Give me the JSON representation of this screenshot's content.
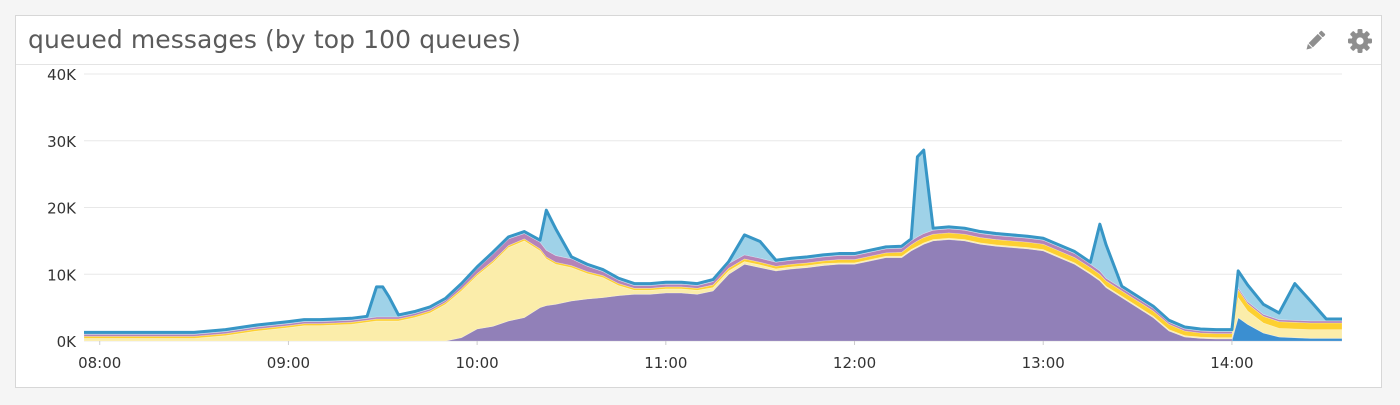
{
  "widget": {
    "title": "queued messages (by top 100 queues)",
    "edit_icon": "pencil-icon",
    "settings_icon": "gear-icon"
  },
  "chart_data": {
    "type": "area",
    "stacked": true,
    "title": "queued messages (by top 100 queues)",
    "xlabel": "",
    "ylabel": "",
    "x_ticks": [
      "08:00",
      "09:00",
      "10:00",
      "11:00",
      "12:00",
      "13:00",
      "14:00"
    ],
    "y_ticks": [
      "0K",
      "10K",
      "20K",
      "30K",
      "40K"
    ],
    "ylim": [
      0,
      40000
    ],
    "xlim": [
      "07:55",
      "14:35"
    ],
    "grid": true,
    "legend": "none",
    "x": [
      "07:55",
      "08:05",
      "08:20",
      "08:30",
      "08:40",
      "08:50",
      "09:00",
      "09:05",
      "09:10",
      "09:15",
      "09:20",
      "09:25",
      "09:28",
      "09:30",
      "09:32",
      "09:35",
      "09:40",
      "09:45",
      "09:50",
      "09:55",
      "10:00",
      "10:05",
      "10:10",
      "10:15",
      "10:20",
      "10:22",
      "10:25",
      "10:30",
      "10:35",
      "10:40",
      "10:45",
      "10:50",
      "10:55",
      "11:00",
      "11:05",
      "11:10",
      "11:15",
      "11:20",
      "11:25",
      "11:30",
      "11:35",
      "11:40",
      "11:45",
      "11:50",
      "11:55",
      "12:00",
      "12:05",
      "12:10",
      "12:15",
      "12:18",
      "12:20",
      "12:22",
      "12:25",
      "12:30",
      "12:35",
      "12:40",
      "12:45",
      "12:50",
      "12:55",
      "13:00",
      "13:05",
      "13:10",
      "13:15",
      "13:18",
      "13:20",
      "13:25",
      "13:30",
      "13:35",
      "13:40",
      "13:45",
      "13:50",
      "13:55",
      "14:00",
      "14:02",
      "14:05",
      "14:10",
      "14:15",
      "14:20",
      "14:25",
      "14:30",
      "14:35"
    ],
    "series": [
      {
        "color": "#3b8fd1",
        "values": [
          0,
          0,
          0,
          0,
          0,
          0,
          0,
          0,
          0,
          0,
          0,
          0,
          0,
          0,
          0,
          0,
          0,
          0,
          0,
          0,
          0,
          0,
          0,
          0,
          0,
          0,
          0,
          0,
          0,
          0,
          0,
          0,
          0,
          0,
          0,
          0,
          0,
          0,
          0,
          0,
          0,
          0,
          0,
          0,
          0,
          0,
          0,
          0,
          0,
          0,
          0,
          0,
          0,
          0,
          0,
          0,
          0,
          0,
          0,
          0,
          0,
          0,
          0,
          0,
          0,
          0,
          0,
          0,
          0,
          0,
          0,
          0,
          0,
          3500,
          2500,
          1200,
          600,
          500,
          400,
          400,
          400
        ]
      },
      {
        "color": "#9180b8",
        "values": [
          0,
          0,
          0,
          0,
          0,
          0,
          0,
          0,
          0,
          0,
          0,
          0,
          0,
          0,
          0,
          0,
          0,
          0,
          0,
          500,
          1800,
          2200,
          3000,
          3500,
          5000,
          5300,
          5500,
          6000,
          6300,
          6500,
          6800,
          7000,
          7000,
          7200,
          7200,
          7000,
          7500,
          10000,
          11500,
          11000,
          10500,
          10800,
          11000,
          11300,
          11500,
          11500,
          12000,
          12500,
          12500,
          13500,
          14000,
          14500,
          15000,
          15200,
          15000,
          14500,
          14200,
          14000,
          13800,
          13500,
          12500,
          11500,
          10000,
          9000,
          8000,
          6500,
          5000,
          3500,
          1500,
          600,
          400,
          300,
          300,
          0,
          0,
          0,
          0,
          0,
          0,
          0,
          0
        ]
      },
      {
        "color": "#fbedaa",
        "values": [
          400,
          400,
          400,
          400,
          800,
          1500,
          2000,
          2300,
          2300,
          2400,
          2500,
          2800,
          3000,
          3000,
          3000,
          3000,
          3500,
          4200,
          5500,
          7000,
          8000,
          9500,
          11000,
          11500,
          8500,
          7000,
          6000,
          5000,
          3800,
          3000,
          1500,
          600,
          600,
          600,
          600,
          600,
          500,
          500,
          400,
          400,
          300,
          300,
          300,
          300,
          200,
          200,
          200,
          200,
          200,
          200,
          200,
          200,
          200,
          200,
          200,
          200,
          200,
          200,
          200,
          200,
          200,
          200,
          200,
          200,
          200,
          200,
          200,
          200,
          200,
          200,
          200,
          200,
          200,
          3000,
          2000,
          1500,
          1300,
          1300,
          1300,
          1300,
          1300
        ]
      },
      {
        "color": "#fdd030",
        "values": [
          300,
          300,
          300,
          300,
          300,
          300,
          300,
          300,
          300,
          300,
          300,
          300,
          300,
          300,
          300,
          300,
          300,
          300,
          300,
          300,
          300,
          300,
          300,
          300,
          300,
          300,
          300,
          300,
          300,
          300,
          300,
          300,
          300,
          300,
          300,
          300,
          400,
          400,
          400,
          400,
          400,
          400,
          400,
          400,
          500,
          500,
          500,
          500,
          600,
          700,
          800,
          800,
          800,
          800,
          800,
          800,
          800,
          800,
          800,
          800,
          800,
          800,
          800,
          800,
          800,
          800,
          800,
          800,
          800,
          700,
          600,
          600,
          600,
          1200,
          1100,
          1000,
          1000,
          1000,
          1000,
          1000,
          1000
        ]
      },
      {
        "color": "#b583b8",
        "values": [
          300,
          300,
          300,
          300,
          300,
          300,
          300,
          300,
          300,
          300,
          300,
          300,
          300,
          300,
          300,
          300,
          300,
          300,
          300,
          500,
          700,
          1000,
          1000,
          800,
          1000,
          1000,
          1000,
          1000,
          800,
          600,
          500,
          400,
          400,
          400,
          400,
          400,
          500,
          700,
          600,
          600,
          600,
          600,
          600,
          600,
          600,
          600,
          600,
          600,
          600,
          600,
          600,
          600,
          600,
          600,
          600,
          600,
          600,
          600,
          600,
          600,
          600,
          600,
          500,
          500,
          400,
          400,
          400,
          400,
          300,
          300,
          300,
          300,
          300,
          300,
          300,
          300,
          300,
          300,
          300,
          300,
          300
        ]
      },
      {
        "color": "#9fd2e8",
        "values": [
          300,
          300,
          300,
          300,
          300,
          300,
          300,
          300,
          300,
          300,
          300,
          300,
          4500,
          4500,
          3000,
          300,
          300,
          300,
          300,
          300,
          300,
          300,
          300,
          300,
          300,
          6000,
          4000,
          300,
          300,
          300,
          300,
          300,
          300,
          300,
          300,
          300,
          300,
          300,
          3000,
          2500,
          300,
          300,
          300,
          300,
          300,
          300,
          300,
          300,
          300,
          300,
          12000,
          12500,
          300,
          300,
          300,
          300,
          300,
          300,
          300,
          300,
          300,
          300,
          300,
          7000,
          5000,
          300,
          300,
          300,
          300,
          300,
          300,
          300,
          300,
          2500,
          2500,
          1500,
          1000,
          5500,
          3000,
          300,
          300
        ]
      }
    ]
  }
}
